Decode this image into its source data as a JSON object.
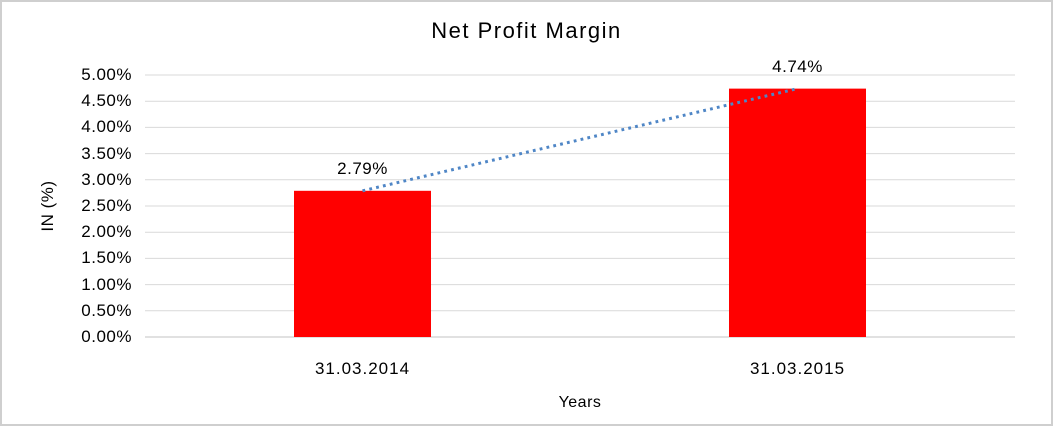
{
  "frame": {
    "border_color": "#cfcfcf",
    "background_color": "#ffffff"
  },
  "chart_data": {
    "type": "bar",
    "title": "Net Profit Margin",
    "xlabel": "Years",
    "ylabel": "IN (%)",
    "categories": [
      "31.03.2014",
      "31.03.2015"
    ],
    "series": [
      {
        "name": "Net Profit Margin",
        "values": [
          2.79,
          4.74
        ]
      }
    ],
    "value_labels": [
      "2.79%",
      "4.74%"
    ],
    "ylim": [
      0,
      5
    ],
    "ytick_step": 0.5,
    "ytick_labels": [
      "0.00%",
      "0.50%",
      "1.00%",
      "1.50%",
      "2.00%",
      "2.50%",
      "3.00%",
      "3.50%",
      "4.00%",
      "4.50%",
      "5.00%"
    ],
    "grid": true,
    "legend": "none",
    "bar_color": "#ff0000",
    "gridline_color": "#d9d9d9",
    "axis_line_color": "#c3c3c3",
    "text_color": "#000000",
    "trendline": {
      "shape": "linear-dotted",
      "color": "#4f86c6",
      "from_value": 2.79,
      "to_value": 4.74
    }
  }
}
